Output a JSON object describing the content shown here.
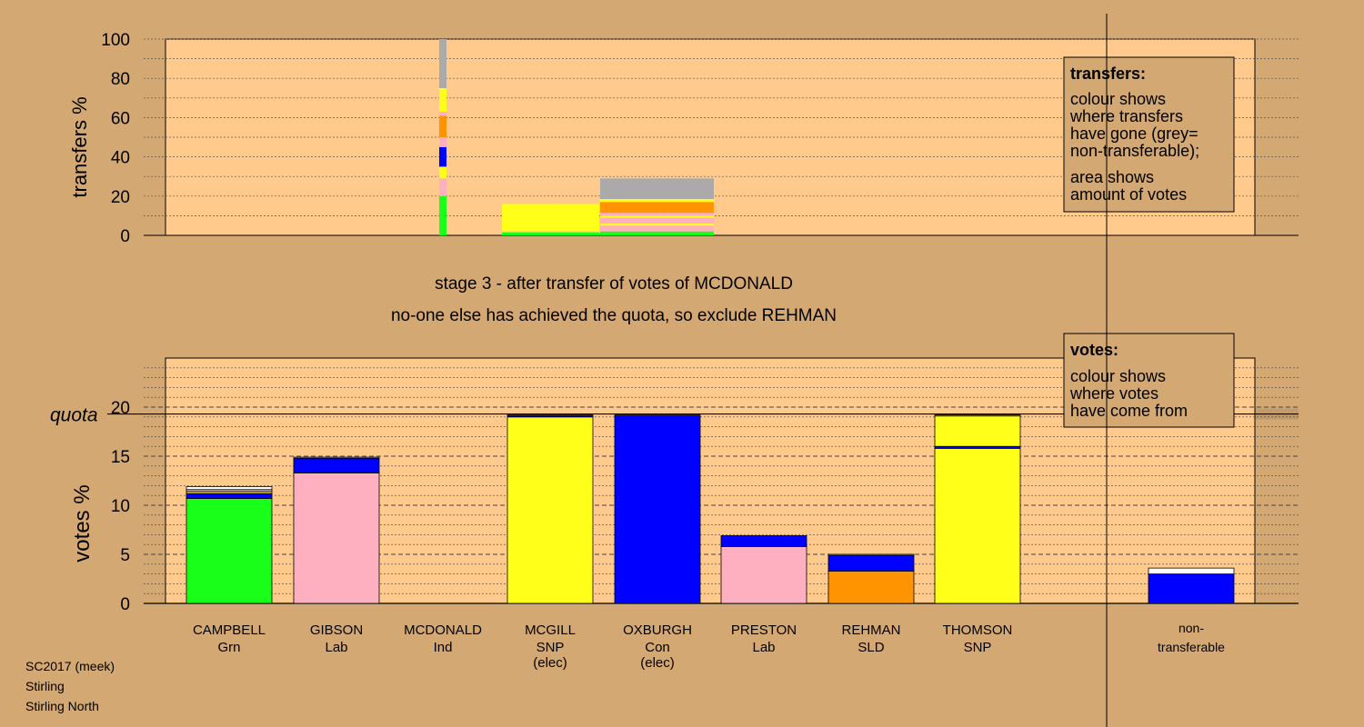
{
  "colors": {
    "background": "#d4a873",
    "plot_area": "#ffca8b",
    "Grn": "#1aff1a",
    "Lab": "#ffb0c0",
    "SNP": "#ffff1a",
    "Con": "#0000ff",
    "SLD": "#ff9400",
    "Ind": "#ffffff",
    "non_transferable": "#aaaaaa"
  },
  "chart_data": [
    {
      "type": "bar",
      "name": "transfers",
      "ylabel": "transfers %",
      "ylim": [
        0,
        100
      ],
      "yticks": [
        0,
        20,
        40,
        60,
        80,
        100
      ],
      "grid": true,
      "legend_title": "transfers:",
      "legend_lines": [
        "colour shows",
        "where transfers",
        "have gone (grey=",
        "non-transferable);",
        "area shows",
        "amount of votes"
      ],
      "columns": [
        {
          "candidate": "MCDONALD",
          "segments": [
            {
              "color": "Grn",
              "value": 20
            },
            {
              "color": "Lab",
              "value": 9
            },
            {
              "color": "SNP",
              "value": 6
            },
            {
              "color": "Con",
              "value": 10
            },
            {
              "color": "Lab",
              "value": 5
            },
            {
              "color": "SLD",
              "value": 11
            },
            {
              "color": "Lab",
              "value": 2
            },
            {
              "color": "SNP",
              "value": 12
            },
            {
              "color": "non_transferable",
              "value": 25
            }
          ]
        },
        {
          "candidate": "MCGILL",
          "segments": [
            {
              "color": "Grn",
              "value": 1.5
            },
            {
              "color": "Lab",
              "value": 0.5
            },
            {
              "color": "SNP",
              "value": 14
            }
          ]
        },
        {
          "candidate": "OXBURGH",
          "segments": [
            {
              "color": "Grn",
              "value": 2
            },
            {
              "color": "Lab",
              "value": 3
            },
            {
              "color": "SNP",
              "value": 1
            },
            {
              "color": "Lab",
              "value": 3
            },
            {
              "color": "SNP",
              "value": 1
            },
            {
              "color": "Lab",
              "value": 1.5
            },
            {
              "color": "SLD",
              "value": 5.5
            },
            {
              "color": "SNP",
              "value": 1.5
            },
            {
              "color": "non_transferable",
              "value": 10.5
            }
          ]
        }
      ]
    },
    {
      "type": "bar",
      "name": "votes",
      "ylabel": "votes %",
      "ylim": [
        0,
        25
      ],
      "yticks": [
        0,
        5,
        10,
        15,
        20
      ],
      "quota": 19.3,
      "quota_label": "quota",
      "grid": true,
      "legend_title": "votes:",
      "legend_lines": [
        "colour shows",
        "where votes",
        "have come from"
      ],
      "categories": [
        {
          "name": "CAMPBELL",
          "party": "Grn",
          "note": "",
          "segments": [
            {
              "color": "Grn",
              "value": 10.7
            },
            {
              "color": "Con",
              "value": 0.5
            },
            {
              "color": "SNP",
              "value": 0.2
            },
            {
              "color": "Lab",
              "value": 0.2
            },
            {
              "color": "Ind",
              "value": 0.3
            }
          ]
        },
        {
          "name": "GIBSON",
          "party": "Lab",
          "note": "",
          "segments": [
            {
              "color": "Lab",
              "value": 13.3
            },
            {
              "color": "Con",
              "value": 1.5
            },
            {
              "color": "Ind",
              "value": 0.1
            }
          ]
        },
        {
          "name": "MCDONALD",
          "party": "Ind",
          "note": "",
          "segments": []
        },
        {
          "name": "MCGILL",
          "party": "SNP",
          "note": "(elec)",
          "segments": [
            {
              "color": "SNP",
              "value": 19.0
            },
            {
              "color": "Con",
              "value": 0.2
            }
          ]
        },
        {
          "name": "OXBURGH",
          "party": "Con",
          "note": "(elec)",
          "segments": [
            {
              "color": "Con",
              "value": 19.2
            }
          ]
        },
        {
          "name": "PRESTON",
          "party": "Lab",
          "note": "",
          "segments": [
            {
              "color": "Lab",
              "value": 5.8
            },
            {
              "color": "Con",
              "value": 1.1
            }
          ]
        },
        {
          "name": "REHMAN",
          "party": "SLD",
          "note": "",
          "segments": [
            {
              "color": "SLD",
              "value": 3.3
            },
            {
              "color": "Con",
              "value": 1.6
            },
            {
              "color": "Ind",
              "value": 0.1
            }
          ]
        },
        {
          "name": "THOMSON",
          "party": "SNP",
          "note": "",
          "segments": [
            {
              "color": "SNP",
              "value": 15.8
            },
            {
              "color": "Con",
              "value": 0.2
            },
            {
              "color": "SNP",
              "value": 3.1
            },
            {
              "color": "Ind",
              "value": 0.1
            }
          ]
        }
      ],
      "non_transferable": {
        "label1": "non-",
        "label2": "transferable",
        "segments": [
          {
            "color": "Con",
            "value": 3.0
          },
          {
            "color": "Ind",
            "value": 0.6
          }
        ]
      }
    }
  ],
  "stage_text": "stage 3 - after transfer of votes of MCDONALD",
  "action_text": "no-one else has achieved the quota, so exclude REHMAN",
  "footer": {
    "line1": "SC2017 (meek)",
    "line2": "Stirling",
    "line3": "Stirling North"
  }
}
